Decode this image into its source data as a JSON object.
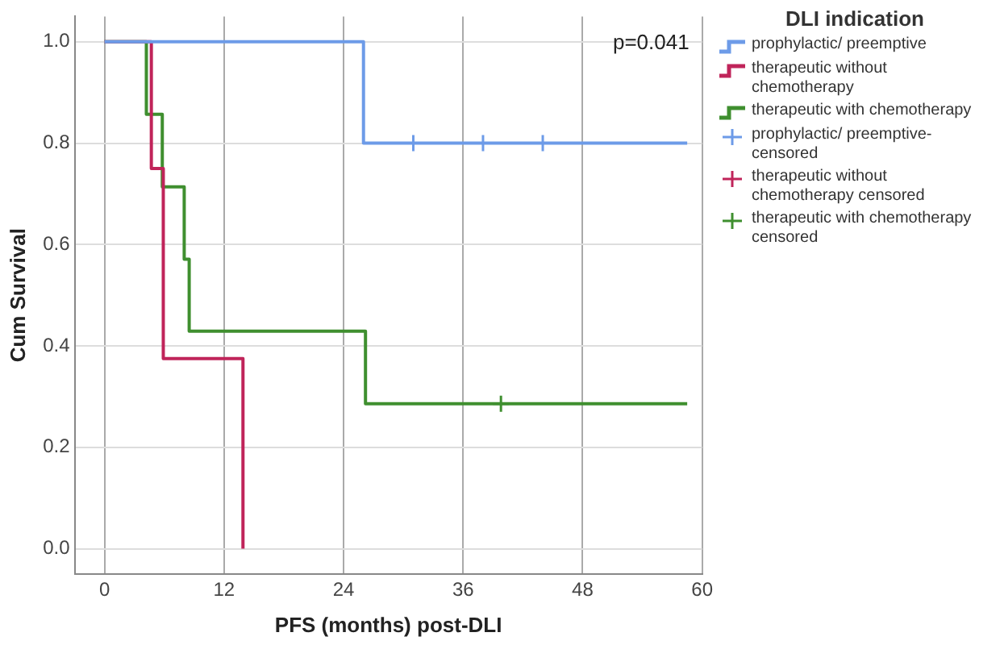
{
  "chart_data": {
    "type": "step",
    "xlabel": "PFS (months) post-DLI",
    "ylabel": "Cum Survival",
    "legend_title": "DLI indication",
    "legend": "right",
    "grid": true,
    "xlim": [
      -3,
      60
    ],
    "xticks": [
      0,
      12,
      24,
      36,
      48,
      60
    ],
    "ylim": [
      -0.05,
      1.05
    ],
    "yticks": [
      {
        "value": 0,
        "label": "0.0"
      },
      0.2,
      0.4,
      0.6,
      0.8,
      {
        "value": 1,
        "label": "1.0"
      }
    ],
    "annotations": [
      "p=0.041"
    ],
    "series": [
      {
        "name": "prophylactic/ preemptive",
        "color": "#6d9be8",
        "x": [
          0,
          26,
          58.5
        ],
        "values": [
          1,
          0.8,
          0.8
        ]
      },
      {
        "name": "therapeutic without chemotherapy",
        "color": "#c0245a",
        "x": [
          0,
          4.7,
          5.9,
          13.9
        ],
        "values": [
          1,
          0.75,
          0.375,
          0
        ]
      },
      {
        "name": "therapeutic with chemotherapy",
        "color": "#3f8f2f",
        "x": [
          0,
          4.2,
          5.8,
          8,
          8.5,
          26.2,
          58.5
        ],
        "values": [
          1,
          0.857,
          0.714,
          0.571,
          0.429,
          0.286,
          0.286
        ]
      },
      {
        "name": "prophylactic/ preemptive-censored",
        "color": "#6d9be8",
        "type": "scatter",
        "marker": "cross",
        "x": [
          31,
          38,
          44
        ],
        "values": [
          0.8,
          0.8,
          0.8
        ]
      },
      {
        "name": "therapeutic without chemotherapy censored",
        "color": "#c0245a",
        "type": "scatter",
        "marker": "cross"
      },
      {
        "name": "therapeutic with chemotherapy censored",
        "color": "#3f8f2f",
        "type": "scatter",
        "marker": "cross",
        "x": [
          39.8
        ],
        "values": [
          0.286
        ]
      }
    ]
  }
}
